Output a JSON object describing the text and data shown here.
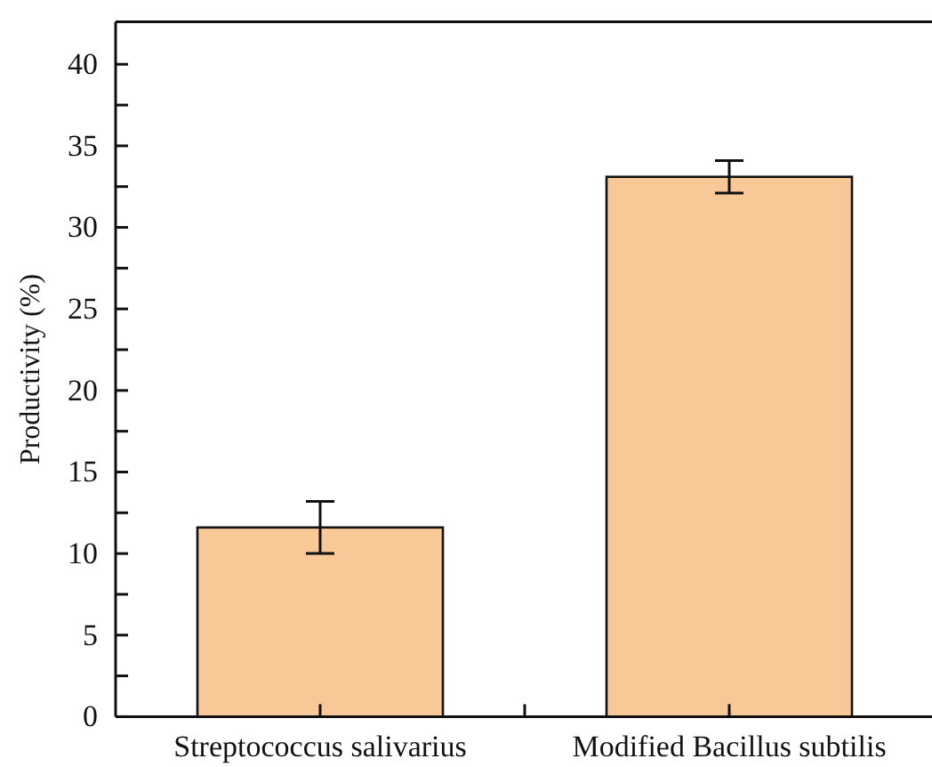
{
  "chart_data": {
    "type": "bar",
    "ylabel": "Productivity (%)",
    "categories": [
      "Streptococcus salivarius",
      "Modified Bacillus subtilis"
    ],
    "values": [
      11.6,
      33.1
    ],
    "errors": [
      1.6,
      1.0
    ],
    "color": "#f9c897",
    "ylim": [
      0,
      42.6
    ],
    "yticks": [
      0,
      {
        "value": 2.5,
        "label": null
      },
      5,
      {
        "value": 7.5,
        "label": null
      },
      10,
      {
        "value": 12.5,
        "label": null
      },
      15,
      {
        "value": 17.5,
        "label": null
      },
      20,
      {
        "value": 22.5,
        "label": null
      },
      25,
      {
        "value": 27.5,
        "label": null
      },
      30,
      {
        "value": 32.5,
        "label": null
      },
      35,
      {
        "value": 37.5,
        "label": null
      },
      40
    ],
    "grid": false
  }
}
